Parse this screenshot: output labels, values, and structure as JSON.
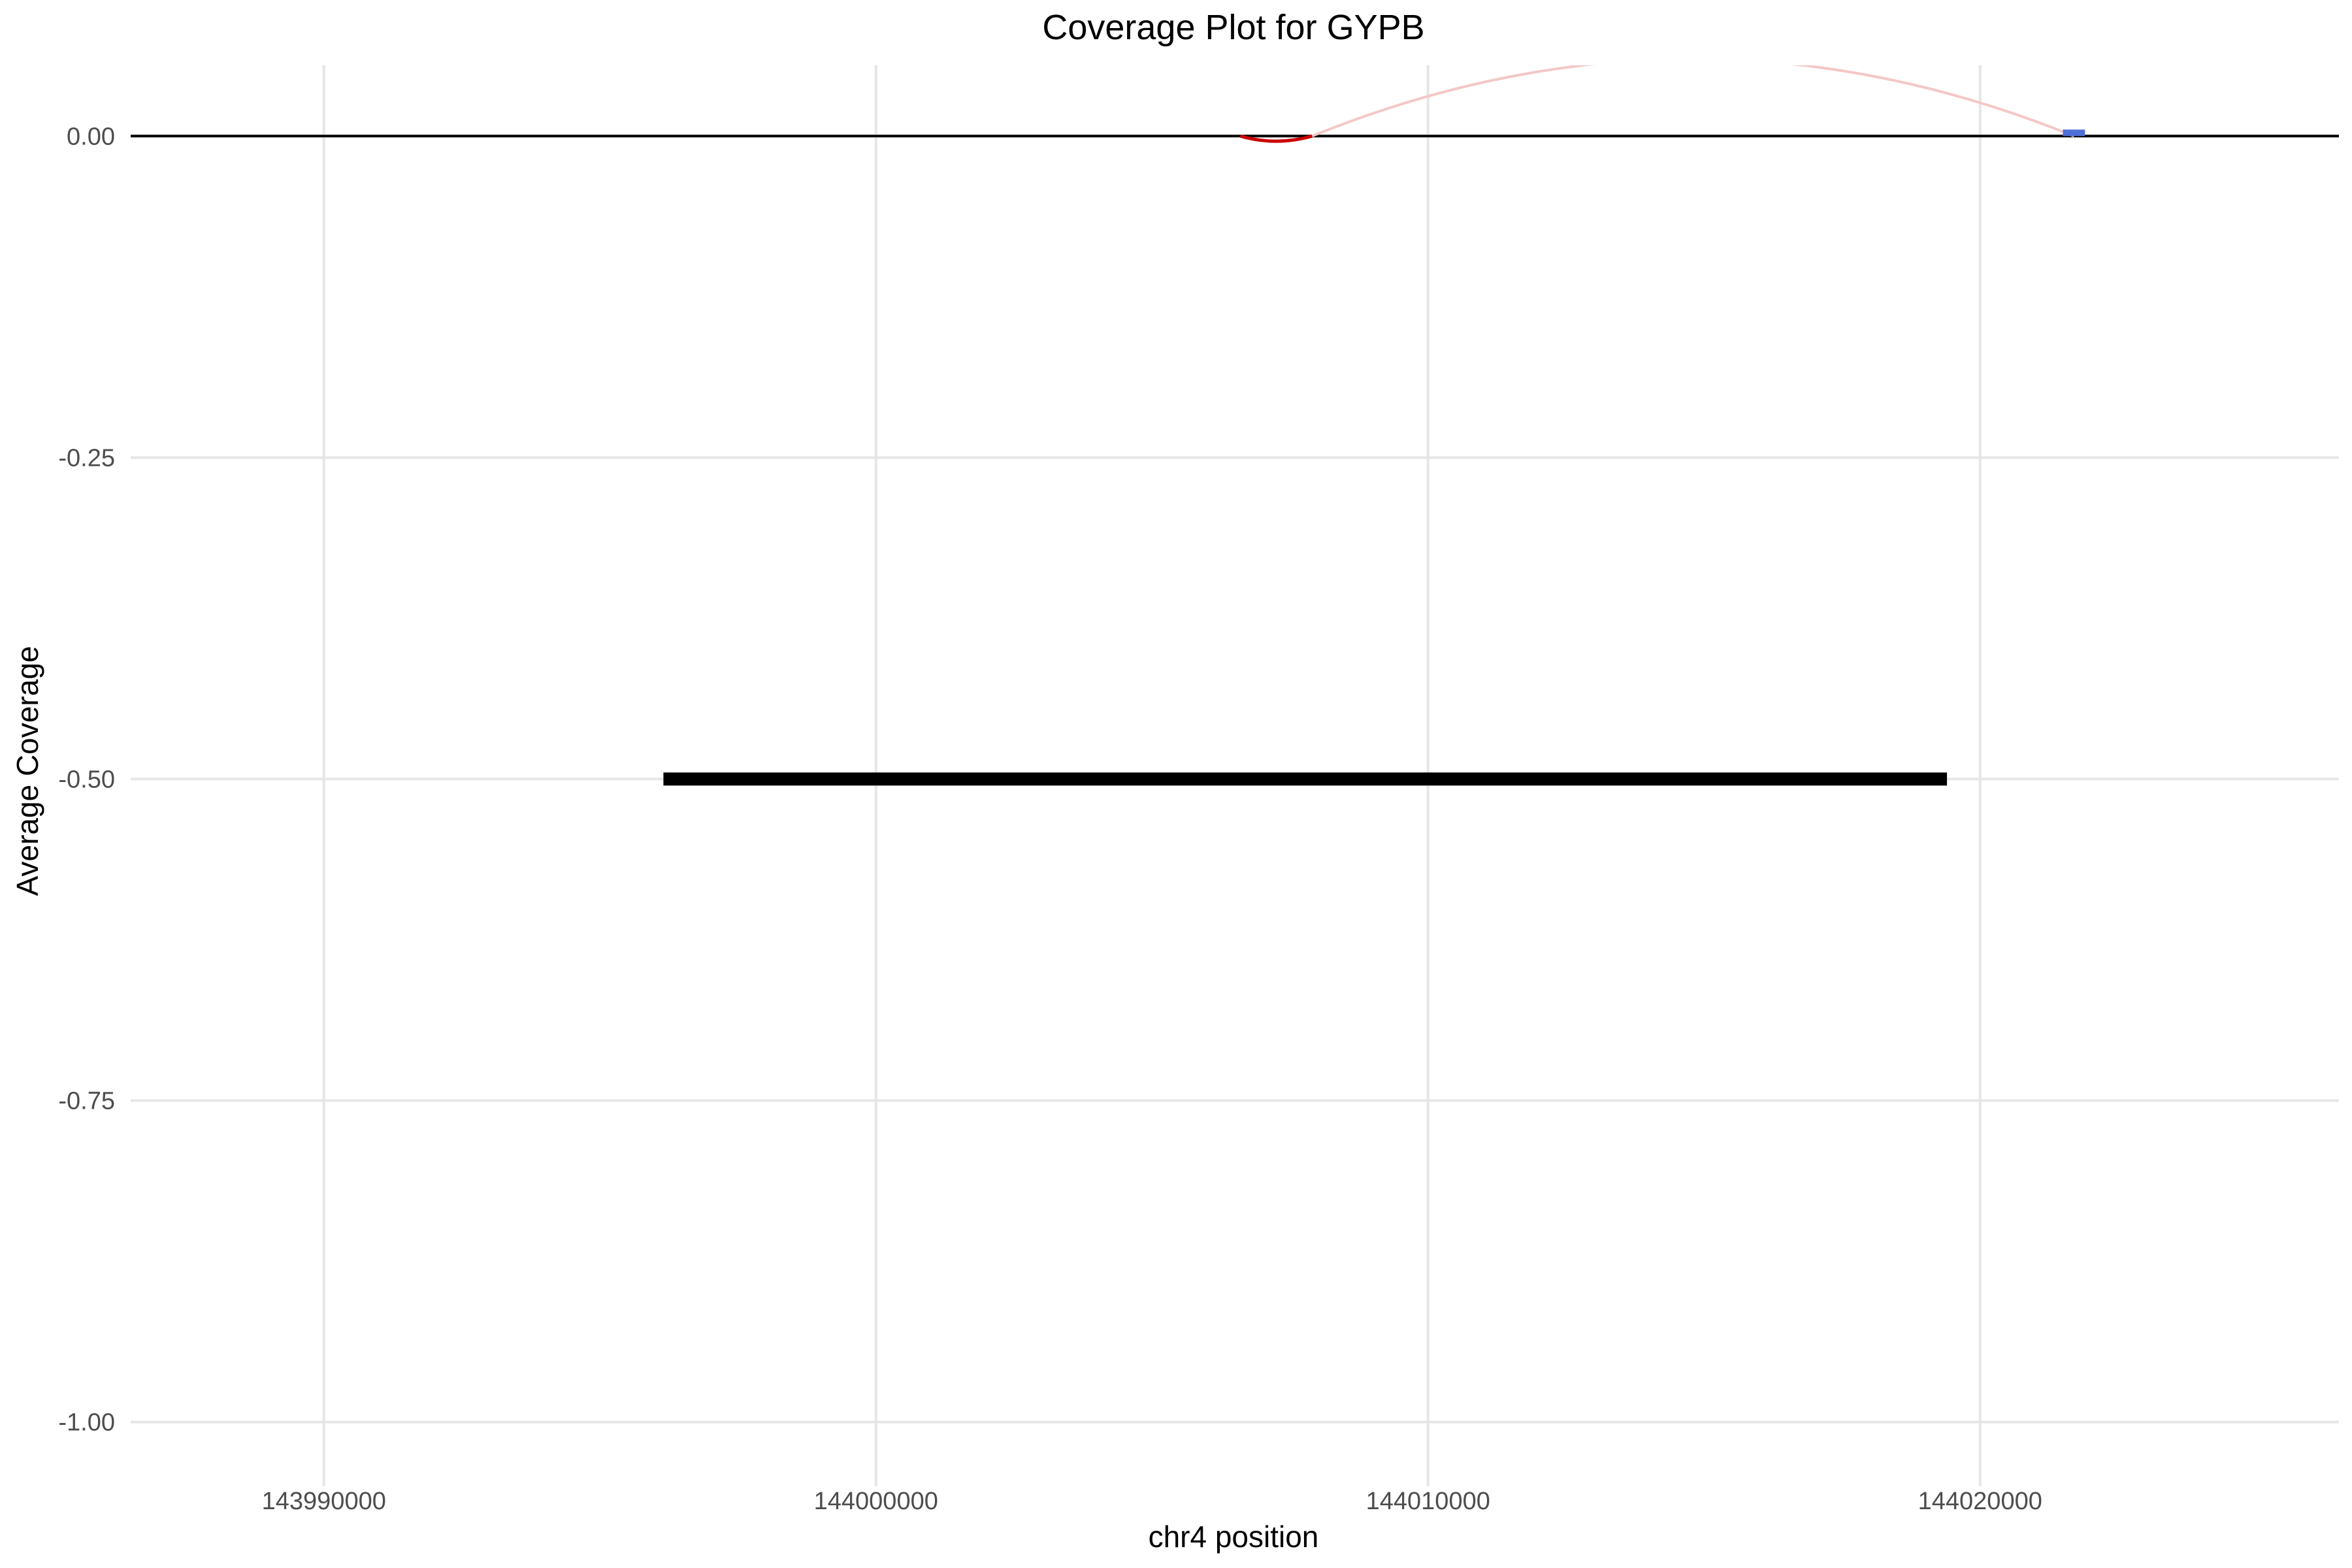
{
  "chart_data": {
    "type": "line",
    "title": "Coverage Plot for GYPB",
    "xlabel": "chr4 position",
    "ylabel": "Average Coverage",
    "xlim": [
      143986500,
      144026500
    ],
    "ylim": [
      -1.05,
      0.055
    ],
    "grid": true,
    "legend": "none",
    "x_ticks": [
      {
        "value": 143990000,
        "label": "143990000"
      },
      {
        "value": 144000000,
        "label": "144000000"
      },
      {
        "value": 144010000,
        "label": "144010000"
      },
      {
        "value": 144020000,
        "label": "144020000"
      }
    ],
    "y_ticks": [
      {
        "value": 0.0,
        "label": "0.00"
      },
      {
        "value": -0.25,
        "label": "-0.25"
      },
      {
        "value": -0.5,
        "label": "-0.50"
      },
      {
        "value": -0.75,
        "label": "-0.75"
      },
      {
        "value": -1.0,
        "label": "-1.00"
      }
    ],
    "reference_line": {
      "y": 0,
      "color": "#000000"
    },
    "gene_segment": {
      "x_start": 143996150,
      "x_end": 144019400,
      "y": -0.5,
      "color": "#000000"
    },
    "coverage_arc": {
      "x_start": 144006600,
      "x_end": 144007900,
      "y_min": -0.004,
      "color": "#cc0000"
    },
    "junction_arc": {
      "x_start": 144007900,
      "x_end": 144021700,
      "y_peak": 0.06,
      "color": "#f4c7c7"
    },
    "coverage_mark": {
      "x_start": 144021500,
      "x_end": 144021900,
      "y": 0.002,
      "color": "#4f6fd6"
    }
  }
}
